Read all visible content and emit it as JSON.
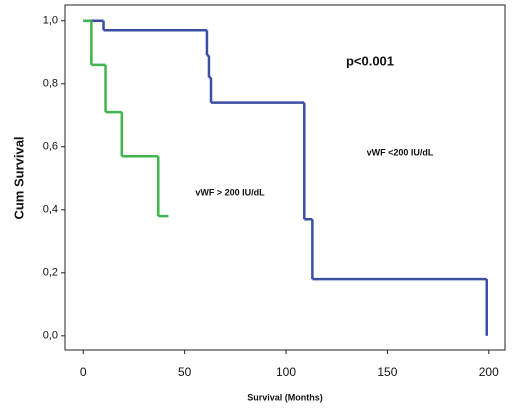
{
  "chart_data": {
    "type": "line",
    "step": "post",
    "xlabel": "Survival (Months)",
    "ylabel": "Cum Survival",
    "xlim": [
      -9,
      208
    ],
    "ylim": [
      -0.045,
      1.05
    ],
    "xticks": [
      0,
      50,
      100,
      150,
      200
    ],
    "yticks": [
      {
        "value": 0.0,
        "label": "0,0"
      },
      {
        "value": 0.2,
        "label": "0,2"
      },
      {
        "value": 0.4,
        "label": "0,4"
      },
      {
        "value": 0.6,
        "label": "0,6"
      },
      {
        "value": 0.8,
        "label": "0,8"
      },
      {
        "value": 1.0,
        "label": "1,0"
      }
    ],
    "annotations": [
      "p<0.001"
    ],
    "series": [
      {
        "name": "vWF <200 IU/dL",
        "color": "#3b4ea3",
        "x": [
          0,
          10,
          61,
          62,
          63,
          109,
          113,
          199
        ],
        "values": [
          1.0,
          0.97,
          0.89,
          0.82,
          0.74,
          0.37,
          0.18,
          0.0
        ]
      },
      {
        "name": "vWF > 200 IU/dL",
        "color": "#3fb54c",
        "x": [
          0,
          4,
          11,
          19,
          37,
          42
        ],
        "values": [
          1.0,
          0.86,
          0.71,
          0.57,
          0.38,
          0.38
        ]
      }
    ]
  }
}
